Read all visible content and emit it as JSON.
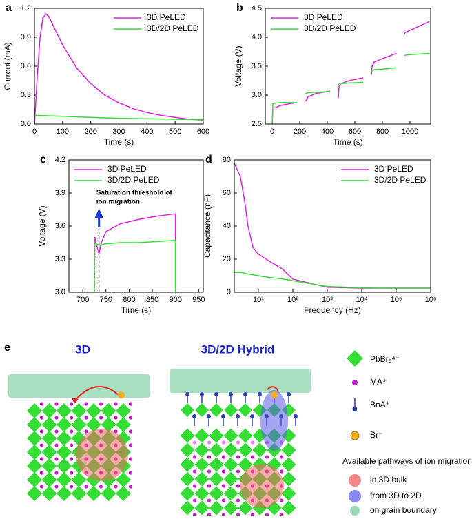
{
  "chart_data": [
    {
      "type": "line",
      "label": "a",
      "xlabel": "Time (s)",
      "ylabel": "Current (mA)",
      "xlim": [
        0,
        600
      ],
      "xticks": [
        0,
        100,
        200,
        300,
        400,
        500,
        600
      ],
      "ylim": [
        0,
        1.2
      ],
      "yticks": [
        {
          "value": 0,
          "label": "0.0"
        },
        0.3,
        0.6,
        0.9,
        1.2
      ],
      "legend": "upper right",
      "series": [
        {
          "name": "3D PeLED",
          "color": "#e020e0",
          "x": [
            0,
            10,
            20,
            30,
            40,
            50,
            70,
            100,
            150,
            200,
            250,
            300,
            350,
            400,
            450,
            500,
            550,
            600
          ],
          "values": [
            0,
            0.5,
            0.9,
            1.1,
            1.14,
            1.12,
            1.0,
            0.82,
            0.58,
            0.42,
            0.3,
            0.22,
            0.16,
            0.12,
            0.09,
            0.07,
            0.05,
            0.04
          ]
        },
        {
          "name": "3D/2D PeLED",
          "color": "#33dd33",
          "x": [
            0,
            100,
            200,
            300,
            400,
            500,
            600
          ],
          "values": [
            0.09,
            0.08,
            0.07,
            0.06,
            0.055,
            0.05,
            0.045
          ]
        }
      ]
    },
    {
      "type": "line",
      "label": "b",
      "xlabel": "Time (s)",
      "ylabel": "Voltage (V)",
      "xlim": [
        -50,
        1150
      ],
      "xticks": [
        0,
        200,
        400,
        600,
        800,
        1000
      ],
      "ylim": [
        2.5,
        4.5
      ],
      "yticks": [
        2.5,
        {
          "value": 3,
          "label": "3.0"
        },
        3.5,
        {
          "value": 4,
          "label": "4.0"
        },
        4.5
      ],
      "legend": "upper left",
      "series": [
        {
          "name": "3D PeLED",
          "color": "#e020e0",
          "x": [
            0,
            5,
            20,
            60,
            120,
            180,
            210,
            240,
            245,
            260,
            320,
            420,
            450,
            480,
            485,
            500,
            560,
            660,
            690,
            720,
            725,
            740,
            800,
            900,
            930,
            960,
            965,
            1000,
            1140
          ],
          "values": [
            2.5,
            2.78,
            2.78,
            2.82,
            2.85,
            2.87,
            null,
            2.9,
            2.9,
            2.97,
            3.03,
            3.07,
            null,
            2.95,
            3.15,
            3.2,
            3.25,
            3.3,
            null,
            3.35,
            3.5,
            3.57,
            3.63,
            3.72,
            null,
            4.05,
            4.08,
            4.12,
            4.27
          ]
        },
        {
          "name": "3D/2D PeLED",
          "color": "#33dd33",
          "x": [
            0,
            5,
            20,
            60,
            120,
            180,
            210,
            240,
            245,
            260,
            320,
            420,
            450,
            480,
            485,
            500,
            560,
            660,
            690,
            720,
            725,
            740,
            800,
            900,
            930,
            960,
            965,
            1000,
            1140
          ],
          "values": [
            2.5,
            2.85,
            2.86,
            2.87,
            2.87,
            2.87,
            null,
            3.02,
            3.03,
            3.04,
            3.05,
            3.06,
            null,
            3.18,
            3.19,
            3.2,
            3.21,
            3.22,
            null,
            3.4,
            3.42,
            3.44,
            3.45,
            3.47,
            null,
            3.68,
            3.69,
            3.7,
            3.72
          ]
        }
      ]
    },
    {
      "type": "line",
      "label": "c",
      "xlabel": "Time (s)",
      "ylabel": "Voltage (V)",
      "xlim": [
        670,
        960
      ],
      "xticks": [
        700,
        750,
        800,
        850,
        900,
        950
      ],
      "ylim": [
        3,
        4.2
      ],
      "yticks": [
        {
          "value": 3,
          "label": "3.0"
        },
        3.3,
        3.6,
        3.9,
        4.2
      ],
      "legend": "upper left",
      "annotation": [
        "Saturation threshold of",
        "ion migration"
      ],
      "threshold_x": 735,
      "series": [
        {
          "name": "3D PeLED",
          "color": "#e020e0",
          "x": [
            725,
            726,
            728,
            735,
            740,
            750,
            780,
            820,
            860,
            898,
            900,
            900
          ],
          "values": [
            3.0,
            3.5,
            3.45,
            3.35,
            3.45,
            3.55,
            3.62,
            3.66,
            3.69,
            3.71,
            3.71,
            3.0
          ]
        },
        {
          "name": "3D/2D PeLED",
          "color": "#33dd33",
          "x": [
            725,
            726,
            728,
            735,
            740,
            750,
            780,
            820,
            860,
            898,
            900,
            900
          ],
          "values": [
            3.0,
            3.45,
            3.44,
            3.43,
            3.43,
            3.44,
            3.45,
            3.45,
            3.46,
            3.47,
            3.47,
            3.0
          ]
        }
      ]
    },
    {
      "type": "line",
      "label": "d",
      "xlabel": "Frequency (Hz)",
      "ylabel": "Capacitance (nF)",
      "xlim": [
        2,
        1000000
      ],
      "xlog": true,
      "xticks": [
        {
          "value": 10,
          "label": "10¹"
        },
        {
          "value": 100,
          "label": "10²"
        },
        {
          "value": 1000,
          "label": "10³"
        },
        {
          "value": 10000,
          "label": "10⁴"
        },
        {
          "value": 100000,
          "label": "10⁵"
        },
        {
          "value": 1000000,
          "label": "10⁶"
        }
      ],
      "ylim": [
        0,
        80
      ],
      "yticks": [
        0,
        20,
        40,
        60,
        80
      ],
      "legend": "upper right",
      "series": [
        {
          "name": "3D PeLED",
          "color": "#e020e0",
          "x": [
            2,
            3,
            4,
            5,
            7,
            10,
            20,
            50,
            100,
            1000,
            10000,
            100000,
            1000000
          ],
          "values": [
            78,
            70,
            55,
            40,
            27,
            23,
            19,
            14,
            8,
            3,
            2.5,
            2.5,
            2.5
          ]
        },
        {
          "name": "3D/2D PeLED",
          "color": "#33dd33",
          "x": [
            2,
            3,
            4,
            5,
            7,
            10,
            20,
            50,
            100,
            1000,
            10000,
            100000,
            1000000
          ],
          "values": [
            12,
            12,
            11.5,
            11,
            10.5,
            10,
            9,
            8,
            7,
            3.5,
            2.7,
            2.5,
            2.5
          ]
        }
      ]
    }
  ],
  "diagram": {
    "label": "e",
    "left_title": "3D",
    "right_title": "3D/2D Hybrid",
    "legend": {
      "octahedron": "PbBr₆⁴⁻",
      "ma": "MA⁺",
      "bna": "BnA⁺",
      "br": "Br⁻"
    },
    "pathways": {
      "title": "Available pathways of ion migration",
      "bulk": "in 3D bulk",
      "interface": "from 3D to 2D",
      "grain": "on grain boundary"
    }
  }
}
